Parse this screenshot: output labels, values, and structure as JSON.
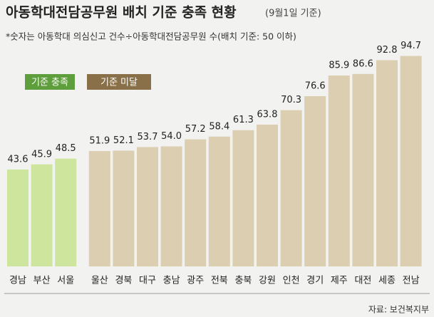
{
  "chart_data": {
    "type": "bar",
    "title": "아동학대전담공무원 배치 기준 충족 현황",
    "title_note": "(9월1일 기준)",
    "subtitle": "*숫자는 아동학대 의심신고 건수÷아동학대전담공무원 수(배치 기준: 50 이하)",
    "source": "자료: 보건복지부",
    "legend": [
      {
        "name": "기준 충족",
        "color": "#5f9e3c"
      },
      {
        "name": "기준 미달",
        "color": "#8a7048"
      }
    ],
    "categories": [
      "경남",
      "부산",
      "서울",
      "울산",
      "경북",
      "대구",
      "충남",
      "광주",
      "전북",
      "충북",
      "강원",
      "인천",
      "경기",
      "제주",
      "대전",
      "세종",
      "전남"
    ],
    "values": [
      43.6,
      45.9,
      48.5,
      51.9,
      52.1,
      53.7,
      54,
      57.2,
      58.4,
      61.3,
      63.8,
      70.3,
      76.6,
      85.9,
      86.6,
      92.8,
      94.7
    ],
    "value_labels": [
      "43.6",
      "45.9",
      "48.5",
      "51.9",
      "52.1",
      "53.7",
      "54.0",
      "57.2",
      "58.4",
      "61.3",
      "63.8",
      "70.3",
      "76.6",
      "85.9",
      "86.6",
      "92.8",
      "94.7"
    ],
    "colors": [
      "#cde59c",
      "#cde59c",
      "#cde59c",
      "#dcceb0",
      "#dcceb0",
      "#dcceb0",
      "#dcceb0",
      "#dcceb0",
      "#dcceb0",
      "#dcceb0",
      "#dcceb0",
      "#dcceb0",
      "#dcceb0",
      "#dcceb0",
      "#dcceb0",
      "#dcceb0",
      "#dcceb0"
    ],
    "ylim": [
      0,
      100
    ]
  }
}
